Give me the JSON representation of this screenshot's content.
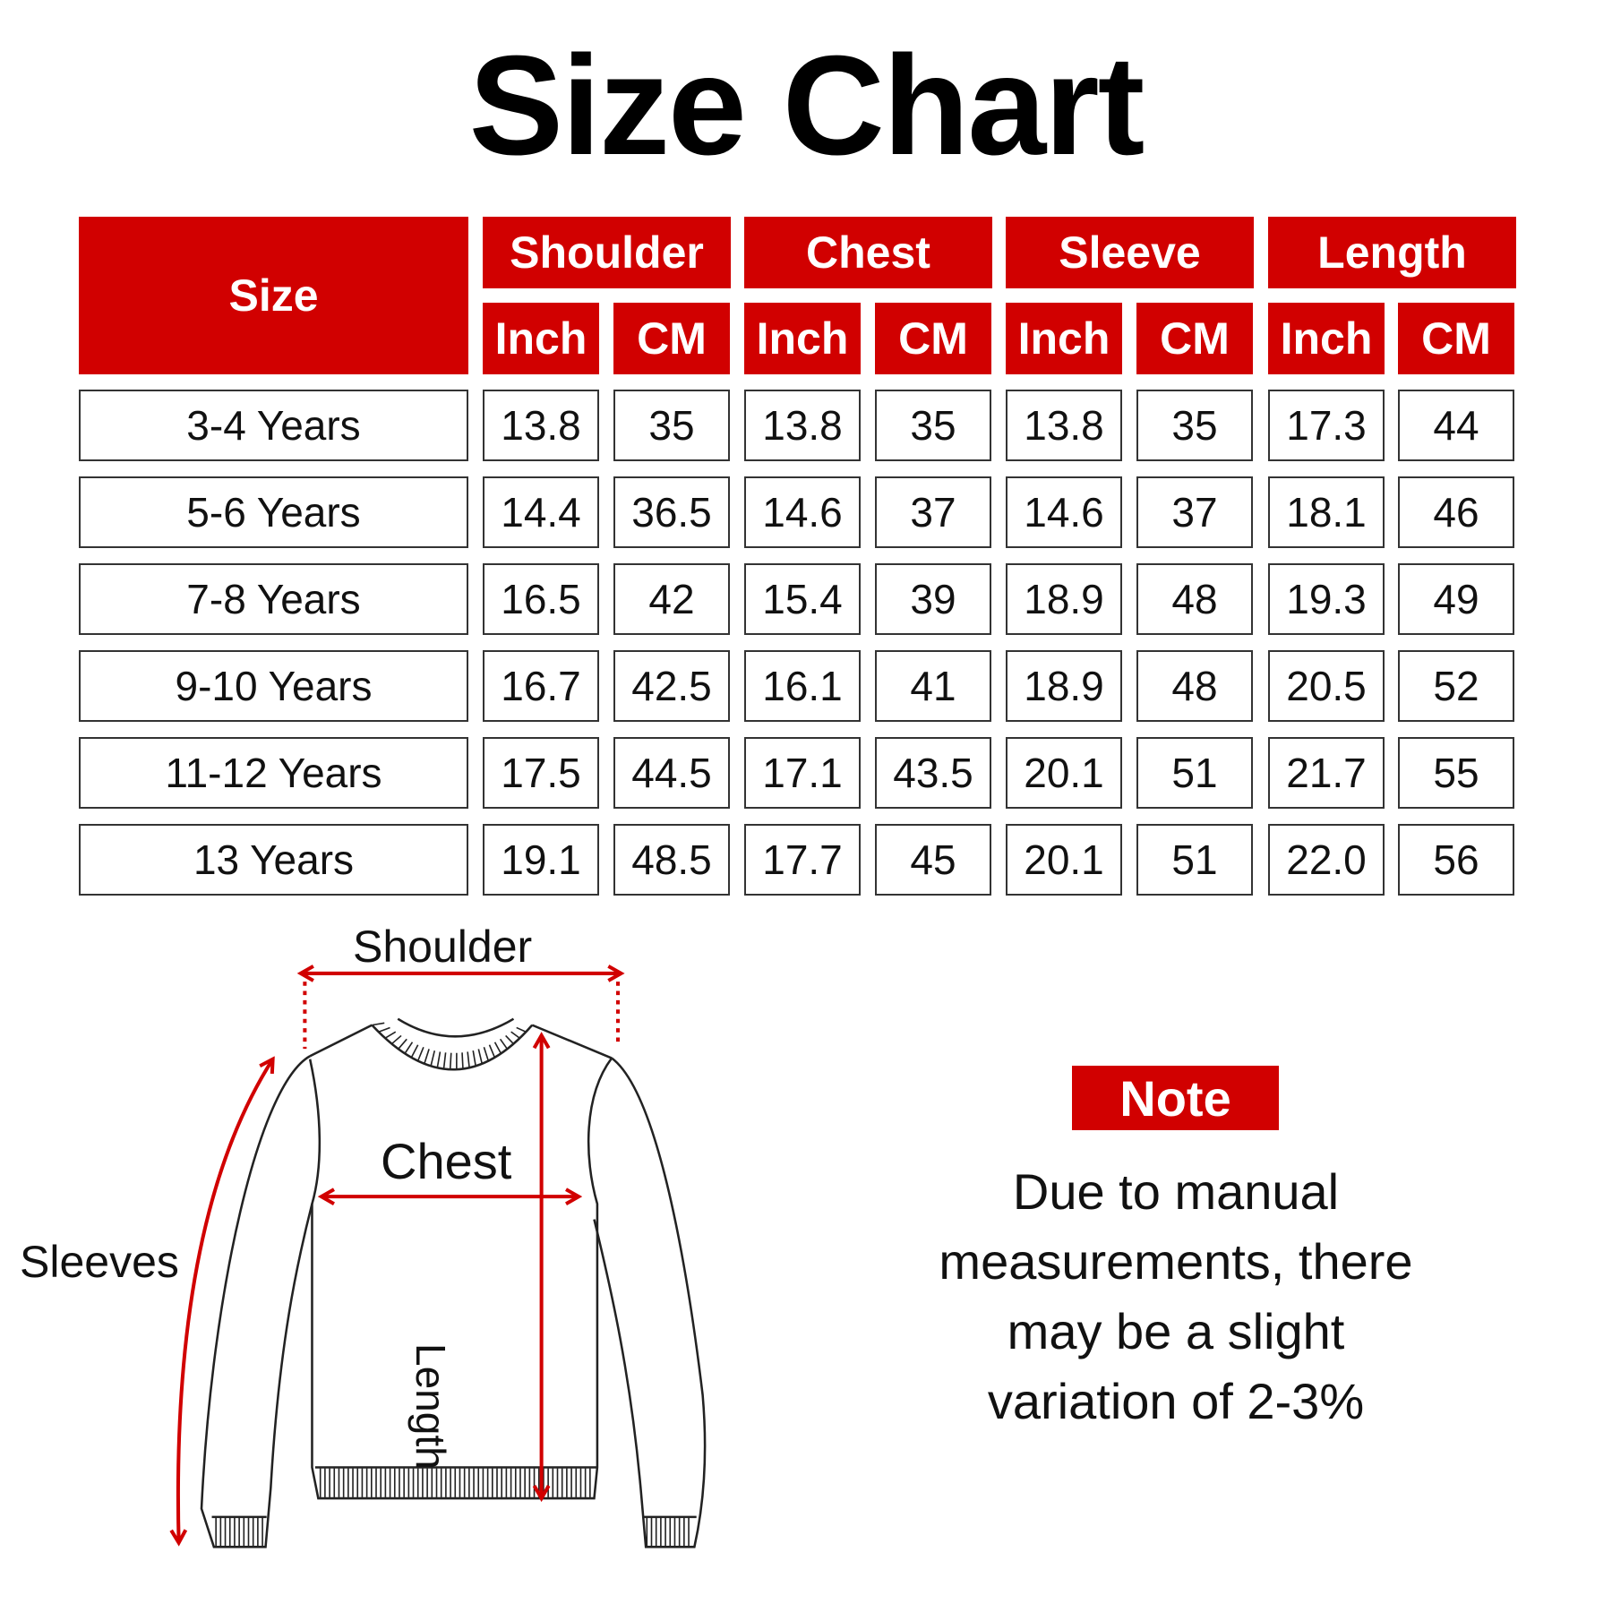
{
  "title": "Size Chart",
  "colors": {
    "accent": "#d10000",
    "text": "#111111"
  },
  "table": {
    "size_header": "Size",
    "groups": [
      "Shoulder",
      "Chest",
      "Sleeve",
      "Length"
    ],
    "units": [
      "Inch",
      "CM",
      "Inch",
      "CM",
      "Inch",
      "CM",
      "Inch",
      "CM"
    ],
    "rows": [
      {
        "size": "3-4 Years",
        "values": [
          "13.8",
          "35",
          "13.8",
          "35",
          "13.8",
          "35",
          "17.3",
          "44"
        ]
      },
      {
        "size": "5-6 Years",
        "values": [
          "14.4",
          "36.5",
          "14.6",
          "37",
          "14.6",
          "37",
          "18.1",
          "46"
        ]
      },
      {
        "size": "7-8 Years",
        "values": [
          "16.5",
          "42",
          "15.4",
          "39",
          "18.9",
          "48",
          "19.3",
          "49"
        ]
      },
      {
        "size": "9-10 Years",
        "values": [
          "16.7",
          "42.5",
          "16.1",
          "41",
          "18.9",
          "48",
          "20.5",
          "52"
        ]
      },
      {
        "size": "11-12 Years",
        "values": [
          "17.5",
          "44.5",
          "17.1",
          "43.5",
          "20.1",
          "51",
          "21.7",
          "55"
        ]
      },
      {
        "size": "13 Years",
        "values": [
          "19.1",
          "48.5",
          "17.7",
          "45",
          "20.1",
          "51",
          "22.0",
          "56"
        ]
      }
    ]
  },
  "diagram": {
    "shoulder": "Shoulder",
    "chest": "Chest",
    "sleeves": "Sleeves",
    "length": "Length"
  },
  "note": {
    "label": "Note",
    "lines": [
      "Due to manual",
      "measurements, there",
      "may be a slight",
      "variation of 2-3%"
    ]
  }
}
